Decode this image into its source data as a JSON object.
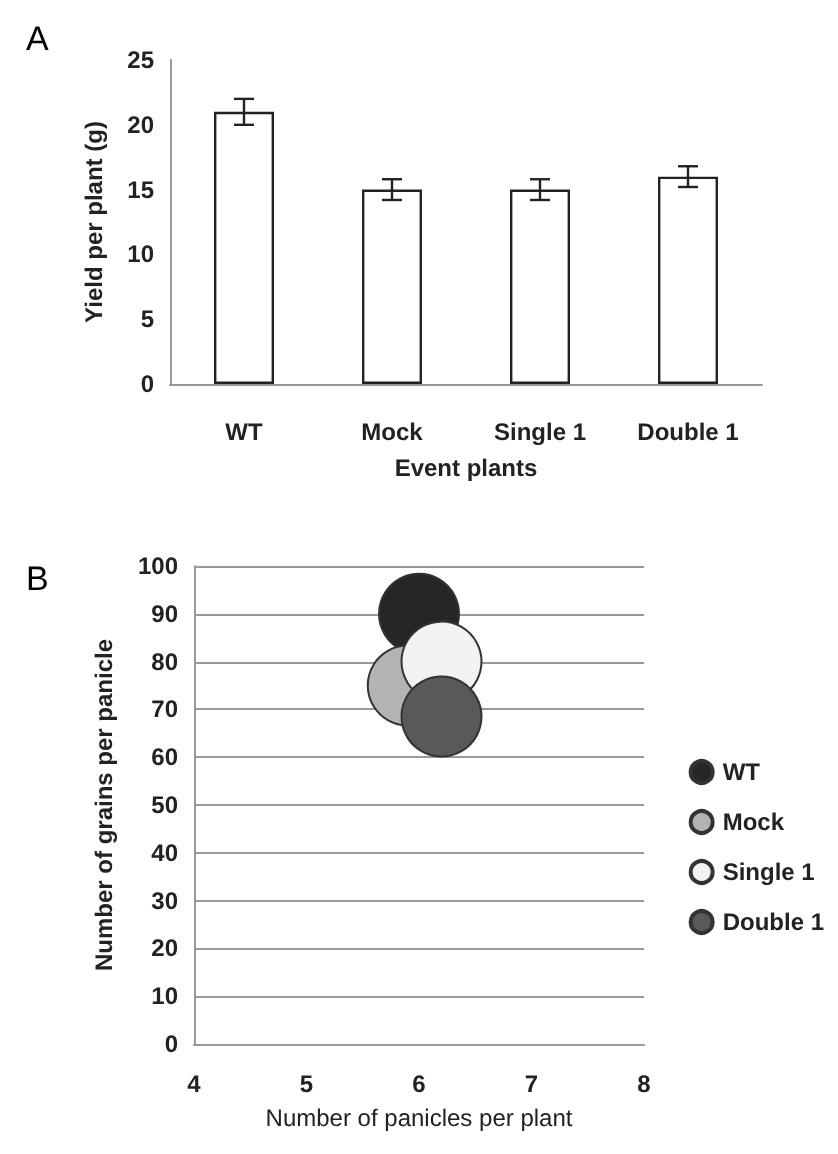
{
  "chart_data": [
    {
      "type": "bar",
      "title": "A",
      "categories": [
        "WT",
        "Mock",
        "Single 1",
        "Double 1"
      ],
      "values": [
        21,
        15,
        15,
        16
      ],
      "errors": [
        1,
        0.8,
        0.8,
        0.8
      ],
      "color": "#ffffff",
      "xlabel": "Event plants",
      "ylabel": "Yield per plant (g)",
      "ylim": [
        0,
        25
      ],
      "yticks": [
        0,
        5,
        10,
        15,
        20,
        25
      ],
      "grid": false
    },
    {
      "type": "bubble",
      "title": "B",
      "xlabel": "Number of panicles per plant",
      "ylabel": "Number of grains per panicle",
      "xlim": [
        4,
        8
      ],
      "xticks": [
        4,
        5,
        6,
        7,
        8
      ],
      "ylim": [
        0,
        100
      ],
      "yticks": [
        0,
        10,
        20,
        30,
        40,
        50,
        60,
        70,
        80,
        90,
        100
      ],
      "grid": "y",
      "legend": "right",
      "marker": "circle",
      "series": [
        {
          "name": "WT",
          "color": "#262626",
          "x": [
            6.0
          ],
          "values": [
            90
          ],
          "sizes": [
            1
          ]
        },
        {
          "name": "Mock",
          "color": "#b3b3b3",
          "x": [
            5.9
          ],
          "values": [
            75
          ],
          "sizes": [
            1
          ]
        },
        {
          "name": "Single 1",
          "color": "#f2f2f2",
          "x": [
            6.2
          ],
          "values": [
            80
          ],
          "sizes": [
            1
          ]
        },
        {
          "name": "Double 1",
          "color": "#595959",
          "x": [
            6.2
          ],
          "values": [
            68.5
          ],
          "sizes": [
            1
          ]
        }
      ]
    }
  ]
}
